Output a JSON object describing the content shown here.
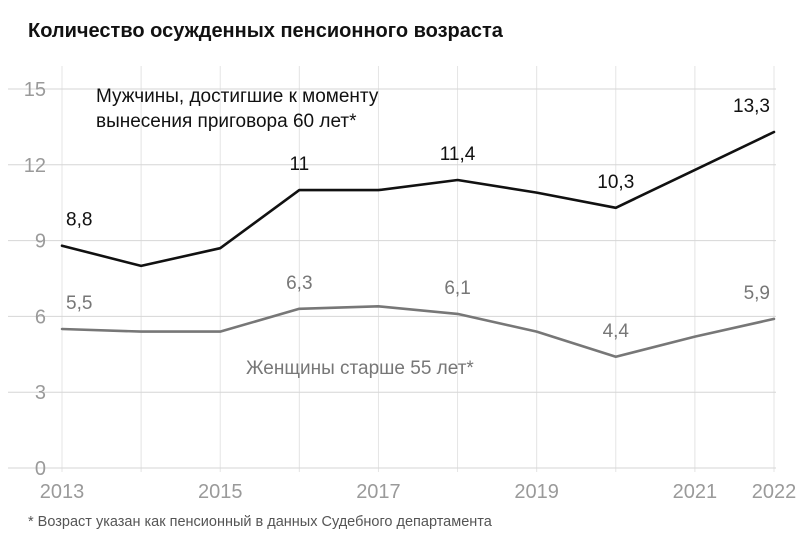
{
  "title": "Количество осужденных пенсионного возраста",
  "footnote": "* Возраст указан как пенсионный в данных Судебного департамента",
  "chart_data": {
    "type": "line",
    "x": [
      2013,
      2014,
      2015,
      2016,
      2017,
      2018,
      2019,
      2020,
      2021,
      2022
    ],
    "x_tick_labels": [
      "2013",
      "2015",
      "2017",
      "2019",
      "2021",
      "2022"
    ],
    "x_tick_values": [
      2013,
      2015,
      2017,
      2019,
      2021,
      2022
    ],
    "y_ticks": [
      0,
      3,
      6,
      9,
      12,
      15
    ],
    "ylim": [
      0,
      15
    ],
    "grid": "horizontal",
    "series": [
      {
        "name": "Мужчины, достигшие к моменту вынесения приговора 60 лет*",
        "name_lines": [
          "Мужчины, достигшие к моменту",
          "вынесения приговора 60 лет*"
        ],
        "color": "#111111",
        "values": [
          8.8,
          8.0,
          8.7,
          11,
          11,
          11.4,
          10.9,
          10.3,
          11.8,
          13.3
        ],
        "labels": [
          {
            "x": 2013,
            "text": "8,8"
          },
          {
            "x": 2016,
            "text": "11"
          },
          {
            "x": 2018,
            "text": "11,4"
          },
          {
            "x": 2020,
            "text": "10,3"
          },
          {
            "x": 2022,
            "text": "13,3"
          }
        ]
      },
      {
        "name": "Женщины старше 55 лет*",
        "color": "#777777",
        "values": [
          5.5,
          5.4,
          5.4,
          6.3,
          6.4,
          6.1,
          5.4,
          4.4,
          5.2,
          5.9
        ],
        "labels": [
          {
            "x": 2013,
            "text": "5,5"
          },
          {
            "x": 2016,
            "text": "6,3"
          },
          {
            "x": 2018,
            "text": "6,1"
          },
          {
            "x": 2020,
            "text": "4,4"
          },
          {
            "x": 2022,
            "text": "5,9"
          }
        ]
      }
    ]
  }
}
